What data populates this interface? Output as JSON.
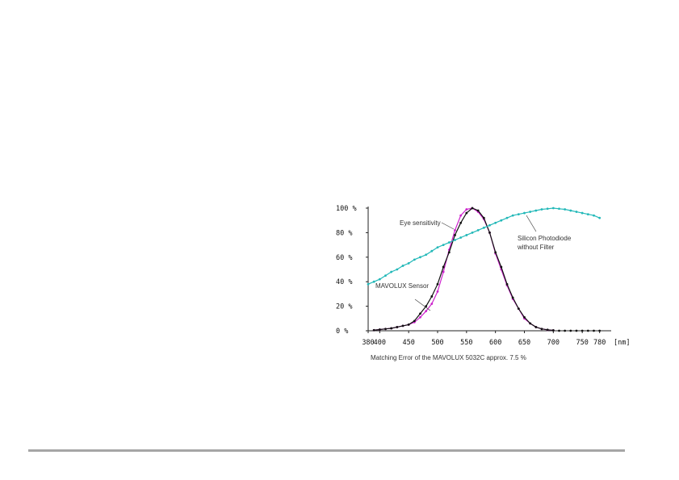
{
  "chart_data": {
    "type": "line",
    "title": "",
    "xlabel": "",
    "ylabel": "",
    "x_unit": "[nm]",
    "xlim": [
      380,
      800
    ],
    "ylim": [
      0,
      100
    ],
    "x_ticks": [
      380,
      400,
      450,
      500,
      550,
      600,
      650,
      700,
      750,
      780
    ],
    "y_ticks": [
      0,
      20,
      40,
      60,
      80,
      100
    ],
    "y_tick_suffix": " %",
    "grid": false,
    "series": [
      {
        "name": "Eye sensitivity",
        "color": "#cc22cc",
        "x": [
          390,
          400,
          410,
          420,
          430,
          440,
          450,
          460,
          470,
          480,
          490,
          500,
          510,
          520,
          530,
          540,
          550,
          560,
          570,
          580,
          590,
          600,
          610,
          620,
          630,
          640,
          650,
          660,
          670,
          680,
          690,
          700
        ],
        "y": [
          0.5,
          1,
          1.5,
          2,
          3,
          4,
          5,
          7,
          11,
          16,
          22,
          32,
          48,
          66,
          82,
          94,
          99,
          100,
          97,
          91,
          80,
          63,
          50,
          37,
          26,
          18,
          10,
          6,
          3,
          1.5,
          0.7,
          0.3
        ]
      },
      {
        "name": "MAVOLUX Sensor",
        "color": "#111111",
        "x": [
          390,
          400,
          410,
          420,
          430,
          440,
          450,
          460,
          470,
          480,
          490,
          500,
          510,
          520,
          530,
          540,
          550,
          560,
          570,
          580,
          590,
          600,
          610,
          620,
          630,
          640,
          650,
          660,
          670,
          680,
          690,
          700
        ],
        "y": [
          0.5,
          1,
          1.5,
          2,
          3,
          4,
          5,
          8,
          14,
          20,
          28,
          38,
          52,
          64,
          78,
          88,
          96,
          100,
          98,
          92,
          80,
          64,
          52,
          38,
          27,
          18,
          11,
          6,
          3,
          1.5,
          0.8,
          0.3
        ]
      },
      {
        "name": "Silicon Photodiode without Filter",
        "color": "#22b8b8",
        "x": [
          380,
          390,
          400,
          410,
          420,
          430,
          440,
          450,
          460,
          470,
          480,
          490,
          500,
          510,
          520,
          530,
          540,
          550,
          560,
          570,
          580,
          590,
          600,
          610,
          620,
          630,
          640,
          650,
          660,
          670,
          680,
          690,
          700,
          710,
          720,
          730,
          740,
          750,
          760,
          770,
          780
        ],
        "y": [
          38,
          40,
          42,
          45,
          48,
          50,
          53,
          55,
          58,
          60,
          62,
          65,
          68,
          70,
          72,
          74,
          76,
          78,
          80,
          82,
          84,
          86,
          88,
          90,
          92,
          94,
          95,
          96,
          97,
          98,
          99,
          99.5,
          100,
          99.5,
          99,
          98,
          97,
          96,
          95,
          94,
          92
        ]
      }
    ],
    "tail_points": {
      "x": [
        700,
        710,
        720,
        730,
        740,
        750,
        760,
        770,
        780
      ],
      "y": [
        0.3,
        0,
        0,
        0,
        0,
        0,
        0,
        0,
        0
      ]
    },
    "annotations": [
      {
        "text": "Eye sensitivity",
        "series": "Eye sensitivity"
      },
      {
        "text": "Silicon Photodiode",
        "series": "Silicon Photodiode without Filter"
      },
      {
        "text": "without Filter",
        "series": "Silicon Photodiode without Filter"
      },
      {
        "text": "MAVOLUX Sensor",
        "series": "MAVOLUX Sensor"
      }
    ],
    "caption": "Matching Error of the MAVOLUX 5032C approx. 7.5 %"
  }
}
